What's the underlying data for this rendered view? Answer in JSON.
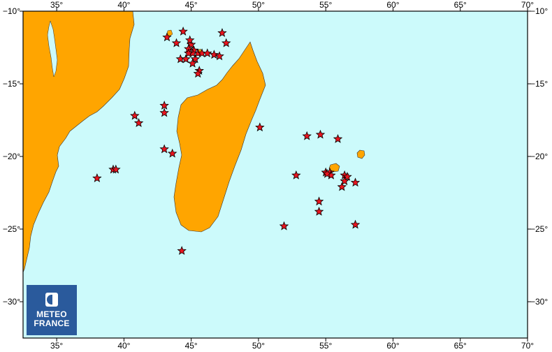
{
  "map": {
    "region": {
      "lon_min": 32.5,
      "lon_max": 70,
      "lat_min": -32.5,
      "lat_max": -10
    },
    "colors": {
      "ocean": "#ccfafb",
      "land": "#ffa500",
      "marker": "#e8141e",
      "frame": "#000000"
    },
    "lon_ticks": [
      35,
      40,
      45,
      50,
      55,
      60,
      65,
      70
    ],
    "lon_labels": [
      "35°",
      "40°",
      "45°",
      "50°",
      "55°",
      "60°",
      "65°",
      "70°"
    ],
    "lat_ticks": [
      -10,
      -15,
      -20,
      -25,
      -30
    ],
    "lat_labels": [
      "−10°",
      "−15°",
      "−20°",
      "−25°",
      "−30°"
    ],
    "marker_icon": "star-icon",
    "events": [
      [
        43.2,
        -11.8
      ],
      [
        44.4,
        -11.4
      ],
      [
        43.9,
        -12.2
      ],
      [
        45.0,
        -12.3
      ],
      [
        44.8,
        -12.6
      ],
      [
        45.2,
        -12.7
      ],
      [
        45.5,
        -12.9
      ],
      [
        45.8,
        -12.9
      ],
      [
        46.2,
        -12.9
      ],
      [
        46.7,
        -13.0
      ],
      [
        47.1,
        -13.1
      ],
      [
        44.2,
        -13.3
      ],
      [
        44.6,
        -13.3
      ],
      [
        45.3,
        -13.3
      ],
      [
        45.1,
        -13.6
      ],
      [
        45.6,
        -14.1
      ],
      [
        45.5,
        -14.3
      ],
      [
        47.3,
        -11.5
      ],
      [
        47.6,
        -12.2
      ],
      [
        44.9,
        -12.0
      ],
      [
        45.1,
        -12.9
      ],
      [
        44.8,
        -12.9
      ],
      [
        43.0,
        -16.5
      ],
      [
        43.0,
        -17.0
      ],
      [
        40.8,
        -17.2
      ],
      [
        41.1,
        -17.7
      ],
      [
        43.0,
        -19.5
      ],
      [
        43.6,
        -19.8
      ],
      [
        39.2,
        -20.9
      ],
      [
        39.4,
        -20.9
      ],
      [
        38.0,
        -21.5
      ],
      [
        44.3,
        -26.5
      ],
      [
        50.1,
        -18.0
      ],
      [
        53.6,
        -18.6
      ],
      [
        54.6,
        -18.5
      ],
      [
        55.9,
        -18.8
      ],
      [
        52.8,
        -21.3
      ],
      [
        55.0,
        -21.1
      ],
      [
        55.3,
        -21.1
      ],
      [
        55.4,
        -21.3
      ],
      [
        55.1,
        -21.2
      ],
      [
        56.4,
        -21.3
      ],
      [
        56.6,
        -21.4
      ],
      [
        56.4,
        -21.7
      ],
      [
        56.2,
        -22.1
      ],
      [
        57.2,
        -21.8
      ],
      [
        54.5,
        -23.1
      ],
      [
        54.5,
        -23.8
      ],
      [
        51.9,
        -24.8
      ],
      [
        57.2,
        -24.7
      ]
    ]
  },
  "logo": {
    "line1": "METEO",
    "line2": "FRANCE"
  }
}
